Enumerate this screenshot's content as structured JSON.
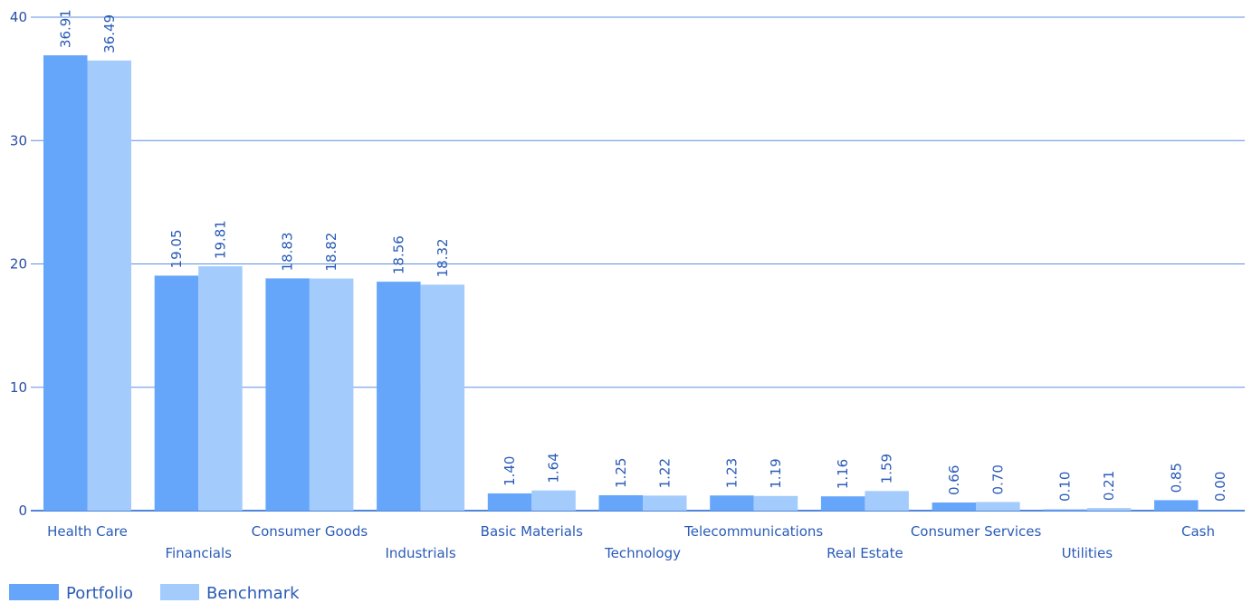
{
  "chart_data": {
    "type": "bar",
    "categories": [
      "Health Care",
      "Financials",
      "Consumer Goods",
      "Industrials",
      "Basic Materials",
      "Technology",
      "Telecommunications",
      "Real Estate",
      "Consumer Services",
      "Utilities",
      "Cash"
    ],
    "series": [
      {
        "name": "Portfolio",
        "values": [
          36.91,
          19.05,
          18.83,
          18.56,
          1.4,
          1.25,
          1.23,
          1.16,
          0.66,
          0.1,
          0.85
        ],
        "labels": [
          "36.91",
          "19.05",
          "18.83",
          "18.56",
          "1.40",
          "1.25",
          "1.23",
          "1.16",
          "0.66",
          "0.10",
          "0.85"
        ],
        "color": "#66a6fa"
      },
      {
        "name": "Benchmark",
        "values": [
          36.49,
          19.81,
          18.82,
          18.32,
          1.64,
          1.22,
          1.19,
          1.59,
          0.7,
          0.21,
          0.0
        ],
        "labels": [
          "36.49",
          "19.81",
          "18.82",
          "18.32",
          "1.64",
          "1.22",
          "1.19",
          "1.59",
          "0.70",
          "0.21",
          "0.00"
        ],
        "color": "#a3cbfc"
      }
    ],
    "ylim": [
      0,
      40
    ],
    "yticks": [
      0,
      10,
      20,
      30,
      40
    ],
    "grid": true,
    "legend": "bottom-left",
    "title": "",
    "xlabel": "",
    "ylabel": ""
  }
}
